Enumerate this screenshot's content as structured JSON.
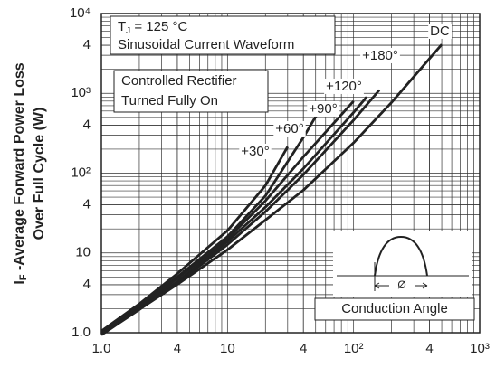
{
  "chart_data": {
    "type": "line",
    "y_label": {
      "main": "I",
      "sub": "F",
      "rest": " -Average Forward Power Loss"
    },
    "y_label_line2": "Over Full Cycle (W)",
    "annotations": [
      {
        "main": "T",
        "sub": "J",
        "rest": " = 125 °C"
      },
      "Sinusoidal Current Waveform",
      "Controlled Rectifier",
      "Turned Fully On",
      "Conduction Angle",
      "Ø"
    ],
    "xlog": true,
    "ylog": true,
    "grid": true,
    "minor_grid": true,
    "color": "#222222",
    "xlim": [
      1,
      1000
    ],
    "xticks": [
      {
        "value": 1,
        "label": "1.0"
      },
      4,
      {
        "value": 10,
        "label": "10"
      },
      {
        "value": 40,
        "label": "4"
      },
      {
        "value": 100,
        "label": "10²"
      },
      {
        "value": 400,
        "label": "4"
      },
      {
        "value": 1000,
        "label": "10³"
      }
    ],
    "ylim": [
      1,
      10000
    ],
    "yticks": [
      {
        "value": 1,
        "label": "1.0"
      },
      4,
      10,
      {
        "value": 40,
        "label": "4"
      },
      {
        "value": 100,
        "label": "10²"
      },
      {
        "value": 400,
        "label": "4"
      },
      {
        "value": 1000,
        "label": "10³"
      },
      {
        "value": 4000,
        "label": "4"
      },
      {
        "value": 10000,
        "label": "10⁴"
      }
    ],
    "series": [
      {
        "name": "+30°",
        "color": "#222222",
        "x": [
          1,
          2,
          4,
          10,
          20,
          30
        ],
        "values": [
          1.05,
          2.3,
          5.5,
          19,
          70,
          214
        ]
      },
      {
        "name": "+60°",
        "color": "#222222",
        "x": [
          1,
          2,
          4,
          10,
          20,
          40,
          55
        ],
        "values": [
          1.0,
          2.2,
          5.0,
          16,
          52,
          280,
          660
        ]
      },
      {
        "name": "+90°",
        "color": "#222222",
        "x": [
          1,
          2,
          4,
          10,
          20,
          40,
          100
        ],
        "values": [
          0.97,
          2.1,
          4.8,
          15,
          45,
          160,
          800
        ]
      },
      {
        "name": "+120°",
        "color": "#222222",
        "x": [
          1,
          2,
          4,
          10,
          20,
          40,
          100,
          127
        ],
        "values": [
          0.95,
          2.0,
          4.4,
          13.9,
          37.5,
          114,
          577,
          900
        ]
      },
      {
        "name": "+180°",
        "color": "#222222",
        "x": [
          1,
          2,
          4,
          10,
          20,
          40,
          100,
          160
        ],
        "values": [
          0.94,
          1.95,
          4.2,
          12.7,
          32.9,
          95.7,
          463,
          1100
        ]
      },
      {
        "name": "DC",
        "color": "#222222",
        "x": [
          1,
          2,
          4,
          10,
          20,
          40,
          100,
          200,
          500
        ],
        "values": [
          0.96,
          1.96,
          4.03,
          10.95,
          25.8,
          61.2,
          240,
          770,
          4100
        ]
      }
    ]
  }
}
